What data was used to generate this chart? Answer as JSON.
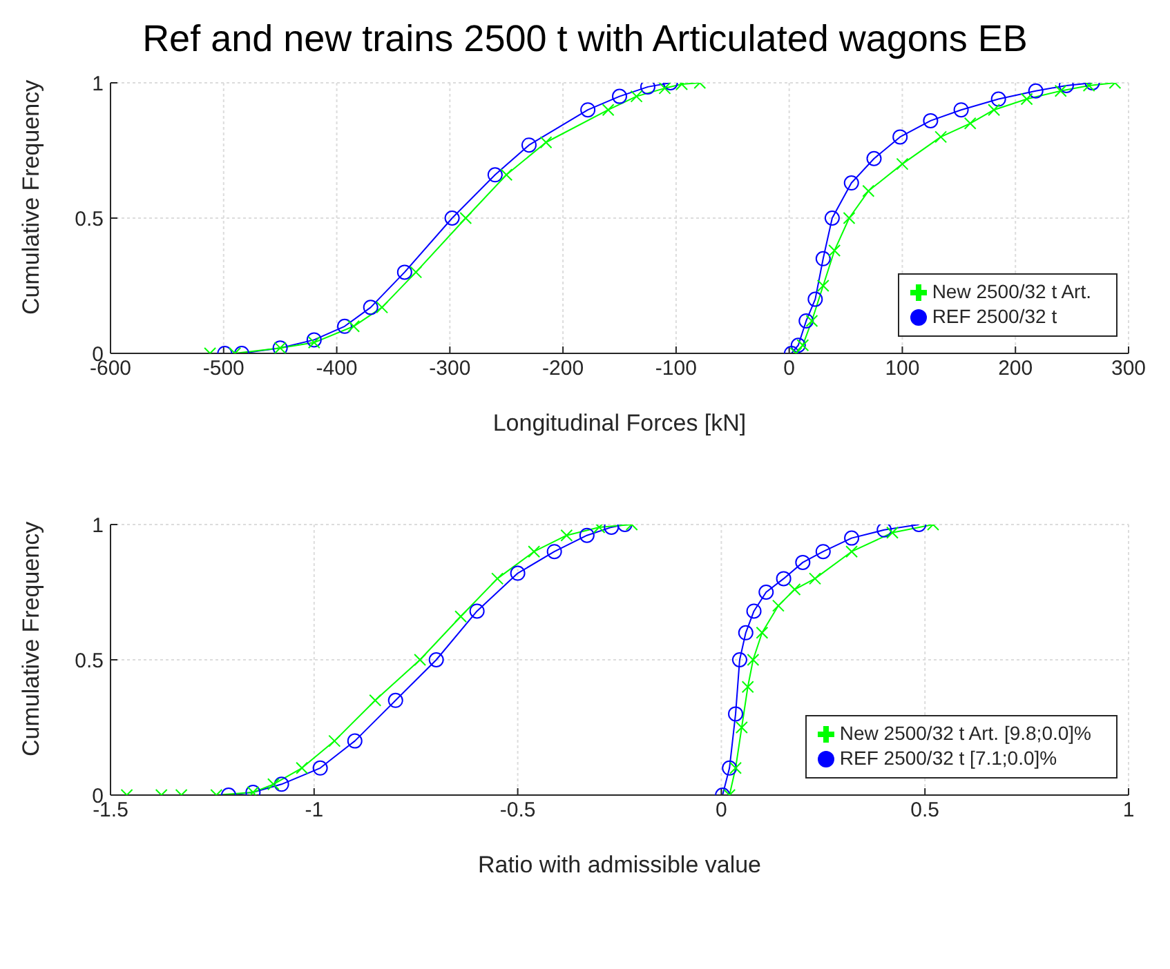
{
  "chart_data": [
    {
      "type": "line",
      "title": "Ref and new trains 2500 t with Articulated wagons EB",
      "xlabel": "Longitudinal Forces [kN]",
      "ylabel": "Cumulative Frequency",
      "xlim": [
        -600,
        300
      ],
      "xticks": [
        -600,
        -500,
        -400,
        -300,
        -200,
        -100,
        0,
        100,
        200,
        300
      ],
      "ylim": [
        0,
        1
      ],
      "yticks": [
        0,
        0.5,
        1
      ],
      "grid": true,
      "legend": "bottom right",
      "line_style": "solid",
      "series": [
        {
          "name": "REF 2500/32 t",
          "color": "#0000ff",
          "marker": "circle",
          "x": [
            -499,
            -484,
            -450,
            -420,
            -393,
            -370,
            -340,
            -298,
            -260,
            -230,
            -178,
            -150,
            -125,
            -105,
            -50,
            2,
            8,
            15,
            23,
            30,
            38,
            55,
            75,
            98,
            125,
            152,
            185,
            218,
            245,
            268
          ],
          "values": [
            0,
            0,
            0.02,
            0.05,
            0.1,
            0.17,
            0.3,
            0.5,
            0.66,
            0.77,
            0.9,
            0.95,
            0.985,
            1,
            null,
            0,
            0.03,
            0.12,
            0.2,
            0.35,
            0.5,
            0.63,
            0.72,
            0.8,
            0.86,
            0.9,
            0.94,
            0.97,
            0.99,
            1
          ]
        },
        {
          "name": "New 2500/32 t Art.",
          "color": "#00ff00",
          "marker": "cross",
          "x": [
            -512,
            -490,
            -450,
            -420,
            -385,
            -360,
            -330,
            -286,
            -250,
            -215,
            -160,
            -135,
            -110,
            -95,
            -79,
            -40,
            6,
            12,
            20,
            30,
            40,
            53,
            70,
            100,
            134,
            160,
            181,
            210,
            240,
            265,
            288
          ],
          "values": [
            0,
            0,
            0.02,
            0.04,
            0.1,
            0.17,
            0.3,
            0.5,
            0.66,
            0.78,
            0.9,
            0.95,
            0.98,
            0.995,
            1,
            null,
            0,
            0.03,
            0.12,
            0.25,
            0.38,
            0.5,
            0.6,
            0.7,
            0.8,
            0.85,
            0.9,
            0.94,
            0.97,
            0.99,
            1
          ]
        }
      ]
    },
    {
      "type": "line",
      "xlabel": "Ratio with admissible value",
      "ylabel": "Cumulative Frequency",
      "xlim": [
        -1.5,
        1
      ],
      "xticks": [
        -1.5,
        -1,
        -0.5,
        0,
        0.5,
        1
      ],
      "ylim": [
        0,
        1
      ],
      "yticks": [
        0,
        0.5,
        1
      ],
      "grid": true,
      "legend": "bottom right",
      "line_style": "solid",
      "series": [
        {
          "name": "REF 2500/32 t [7.1;0.0]%",
          "color": "#0000ff",
          "marker": "circle",
          "x": [
            -1.21,
            -1.15,
            -1.08,
            -0.985,
            -0.9,
            -0.8,
            -0.7,
            -0.6,
            -0.5,
            -0.41,
            -0.33,
            -0.27,
            -0.237,
            -0.1,
            0.003,
            0.02,
            0.035,
            0.045,
            0.06,
            0.08,
            0.11,
            0.153,
            0.2,
            0.25,
            0.32,
            0.4,
            0.485
          ],
          "values": [
            0,
            0.01,
            0.04,
            0.1,
            0.2,
            0.35,
            0.5,
            0.68,
            0.82,
            0.9,
            0.96,
            0.99,
            1,
            null,
            0,
            0.1,
            0.3,
            0.5,
            0.6,
            0.68,
            0.75,
            0.8,
            0.86,
            0.9,
            0.95,
            0.98,
            1
          ]
        },
        {
          "name": "New 2500/32 t Art. [9.8;0.0]%",
          "color": "#00ff00",
          "marker": "cross",
          "x": [
            -1.46,
            -1.375,
            -1.326,
            -1.24,
            -1.15,
            -1.1,
            -1.03,
            -0.95,
            -0.85,
            -0.74,
            -0.64,
            -0.55,
            -0.46,
            -0.38,
            -0.3,
            -0.22,
            -0.1,
            0.02,
            0.035,
            0.05,
            0.065,
            0.078,
            0.1,
            0.14,
            0.18,
            0.23,
            0.32,
            0.42,
            0.52
          ],
          "values": [
            0,
            0,
            0,
            0,
            0.01,
            0.04,
            0.1,
            0.2,
            0.35,
            0.5,
            0.66,
            0.8,
            0.9,
            0.96,
            0.99,
            1,
            null,
            0,
            0.1,
            0.25,
            0.4,
            0.5,
            0.6,
            0.7,
            0.76,
            0.8,
            0.9,
            0.97,
            1
          ]
        }
      ]
    }
  ]
}
